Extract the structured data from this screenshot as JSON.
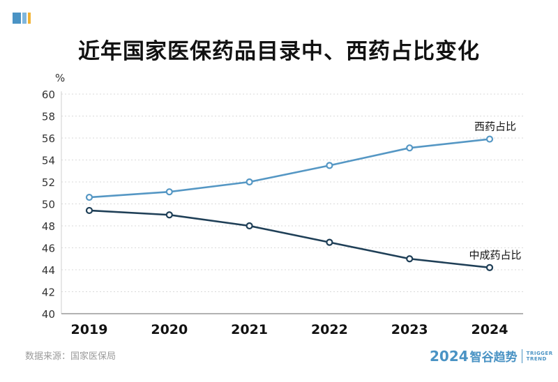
{
  "title": "近年国家医保药品目录中、西药占比变化",
  "source": "数据来源：国家医保局",
  "brand": {
    "year": "2024",
    "name": "智谷趋势",
    "en_line1": "TRIGGER",
    "en_line2": "TREND"
  },
  "colors": {
    "western": "#5597c4",
    "chinese": "#1f3f57",
    "brand": "#4a93c4",
    "corner": "#4a93c4"
  },
  "chart_data": {
    "type": "line",
    "x": [
      "2019",
      "2020",
      "2021",
      "2022",
      "2023",
      "2024"
    ],
    "series": [
      {
        "name": "西药占比",
        "values": [
          50.6,
          51.1,
          52.0,
          53.5,
          55.1,
          55.9
        ]
      },
      {
        "name": "中成药占比",
        "values": [
          49.4,
          49.0,
          48.0,
          46.5,
          45.0,
          44.2
        ]
      }
    ],
    "ylabel": "%",
    "ylim": [
      40,
      60
    ],
    "yticks": [
      40,
      42,
      44,
      46,
      48,
      50,
      52,
      54,
      56,
      58,
      60
    ],
    "grid": true
  }
}
